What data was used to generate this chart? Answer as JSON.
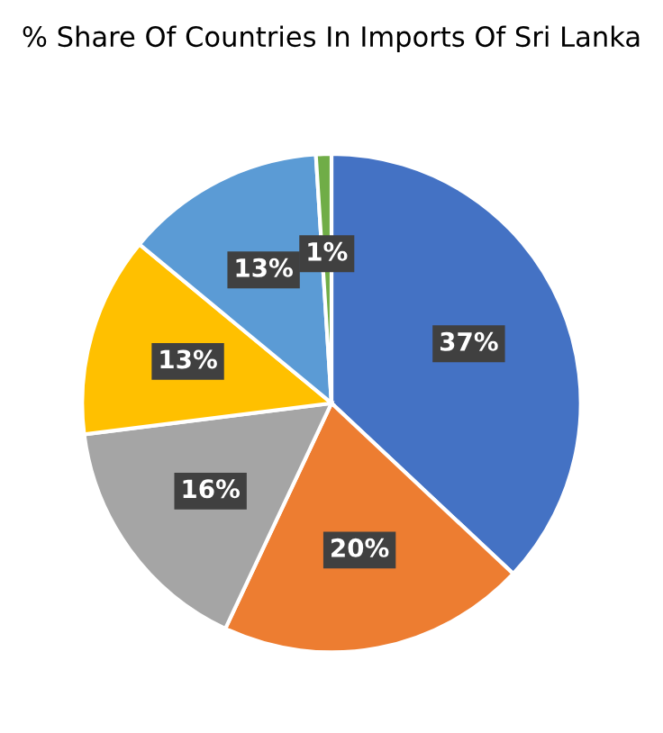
{
  "chart_data": {
    "type": "pie",
    "title": "% Share Of Countries In Imports Of Sri Lanka",
    "categories": [
      null,
      null,
      null,
      null,
      null,
      null
    ],
    "values": [
      37,
      20,
      16,
      13,
      13,
      1
    ],
    "value_labels": [
      "37%",
      "20%",
      "16%",
      "13%",
      "13%",
      "1%"
    ],
    "colors": [
      "#4472c4",
      "#ed7d31",
      "#a5a5a5",
      "#ffc000",
      "#5b9bd5",
      "#70ad47"
    ]
  }
}
